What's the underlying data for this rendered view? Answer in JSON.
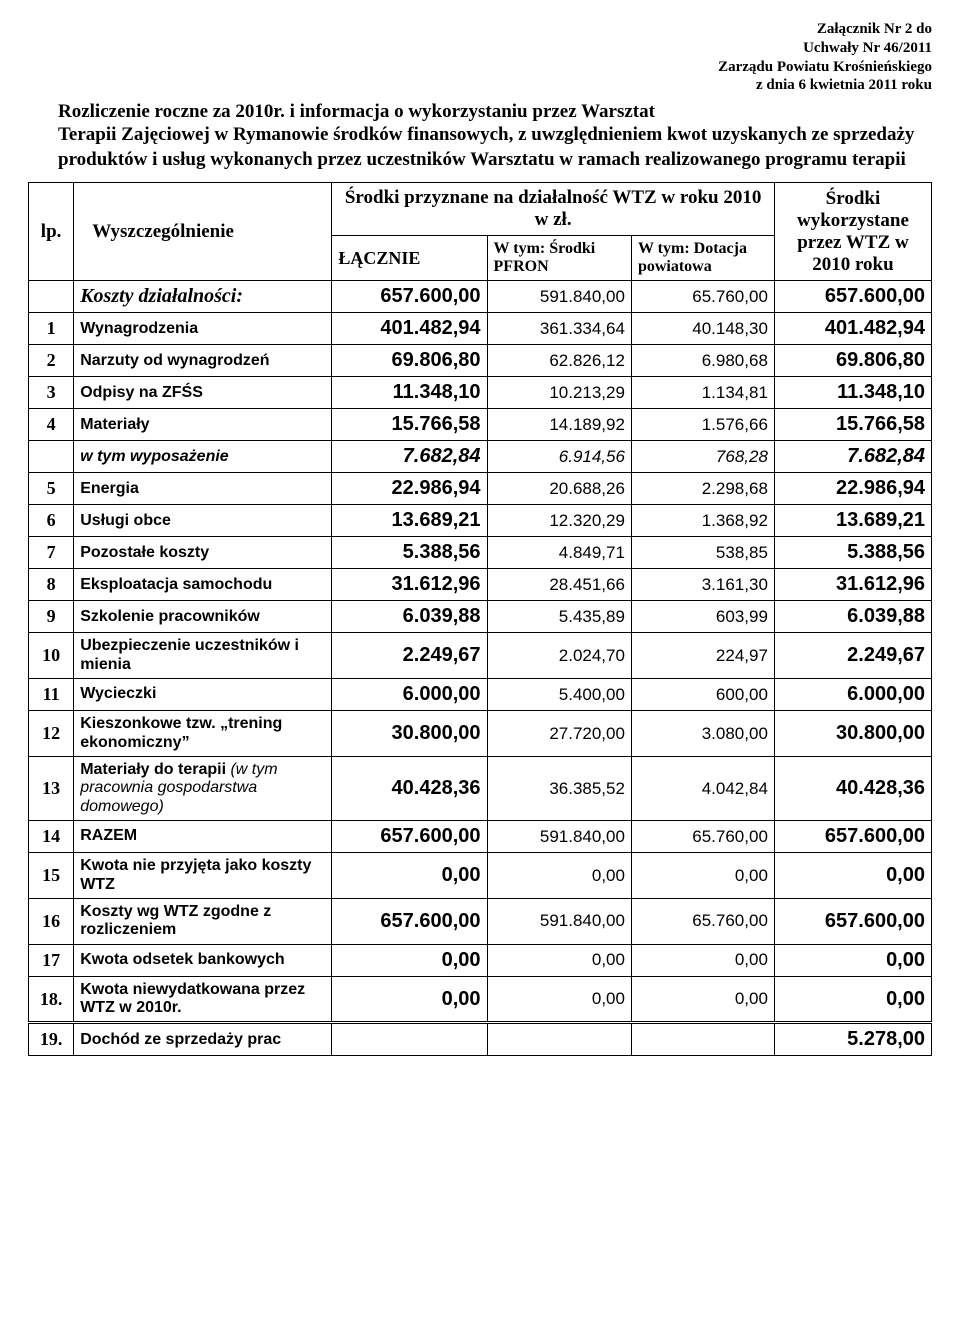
{
  "attachment": {
    "l1": "Załącznik Nr 2 do",
    "l2": "Uchwały Nr 46/2011",
    "l3": "Zarządu Powiatu Krośnieńskiego",
    "l4": "z dnia 6 kwietnia 2011 roku"
  },
  "title1": "Rozliczenie roczne za 2010r. i informacja o wykorzystaniu przez Warsztat",
  "title2": "Terapii Zajęciowej w Rymanowie środków finansowych, z uwzględnieniem kwot uzyskanych ze sprzedaży produktów i usług wykonanych przez uczestników Warsztatu w ramach realizowanego programu terapii",
  "headers": {
    "lp": "lp.",
    "spec": "Wyszczególnienie",
    "fund_top": "Środki przyznane na działalność WTZ w roku 2010 w zł.",
    "lacznie": "ŁĄCZNIE",
    "pfron": "W tym: Środki PFRON",
    "dotacja": "W tym: Dotacja powiatowa",
    "wyk": "Środki wykorzystane przez WTZ w 2010 roku"
  },
  "section_label": "Koszty działalności:",
  "section_vals": [
    "657.600,00",
    "591.840,00",
    "65.760,00",
    "657.600,00"
  ],
  "rows": [
    {
      "lp": "1",
      "name": "Wynagrodzenia",
      "v": [
        "401.482,94",
        "361.334,64",
        "40.148,30",
        "401.482,94"
      ]
    },
    {
      "lp": "2",
      "name": "Narzuty od wynagrodzeń",
      "v": [
        "69.806,80",
        "62.826,12",
        "6.980,68",
        "69.806,80"
      ]
    },
    {
      "lp": "3",
      "name": "Odpisy na ZFŚS",
      "v": [
        "11.348,10",
        "10.213,29",
        "1.134,81",
        "11.348,10"
      ]
    },
    {
      "lp": "4",
      "name": "Materiały",
      "v": [
        "15.766,58",
        "14.189,92",
        "1.576,66",
        "15.766,58"
      ]
    },
    {
      "lp": "",
      "name": "w tym wyposażenie",
      "italic": true,
      "v": [
        "7.682,84",
        "6.914,56",
        "768,28",
        "7.682,84"
      ]
    },
    {
      "lp": "5",
      "name": "Energia",
      "v": [
        "22.986,94",
        "20.688,26",
        "2.298,68",
        "22.986,94"
      ]
    },
    {
      "lp": "6",
      "name": "Usługi obce",
      "v": [
        "13.689,21",
        "12.320,29",
        "1.368,92",
        "13.689,21"
      ]
    },
    {
      "lp": "7",
      "name": "Pozostałe koszty",
      "v": [
        "5.388,56",
        "4.849,71",
        "538,85",
        "5.388,56"
      ]
    },
    {
      "lp": "8",
      "name": "Eksploatacja samochodu",
      "v": [
        "31.612,96",
        "28.451,66",
        "3.161,30",
        "31.612,96"
      ]
    },
    {
      "lp": "9",
      "name": "Szkolenie pracowników",
      "v": [
        "6.039,88",
        "5.435,89",
        "603,99",
        "6.039,88"
      ]
    },
    {
      "lp": "10",
      "name": "Ubezpieczenie uczestników i mienia",
      "v": [
        "2.249,67",
        "2.024,70",
        "224,97",
        "2.249,67"
      ]
    },
    {
      "lp": "11",
      "name": "Wycieczki",
      "v": [
        "6.000,00",
        "5.400,00",
        "600,00",
        "6.000,00"
      ]
    },
    {
      "lp": "12",
      "name": "Kieszonkowe tzw. „trening ekonomiczny”",
      "v": [
        "30.800,00",
        "27.720,00",
        "3.080,00",
        "30.800,00"
      ]
    },
    {
      "lp": "13",
      "name": "Materiały do terapii <span class='sub'>(w tym pracownia gospodarstwa domowego)</span>",
      "v": [
        "40.428,36",
        "36.385,52",
        "4.042,84",
        "40.428,36"
      ]
    },
    {
      "lp": "14",
      "name": "RAZEM",
      "v": [
        "657.600,00",
        "591.840,00",
        "65.760,00",
        "657.600,00"
      ]
    },
    {
      "lp": "15",
      "name": "Kwota nie przyjęta jako koszty WTZ",
      "v": [
        "0,00",
        "0,00",
        "0,00",
        "0,00"
      ]
    },
    {
      "lp": "16",
      "name": "Koszty wg WTZ zgodne z rozliczeniem",
      "v": [
        "657.600,00",
        "591.840,00",
        "65.760,00",
        "657.600,00"
      ]
    },
    {
      "lp": "17",
      "name": "Kwota odsetek bankowych",
      "v": [
        "0,00",
        "0,00",
        "0,00",
        "0,00"
      ]
    },
    {
      "lp": "18.",
      "name": "Kwota niewydatkowana przez WTZ w 2010r.",
      "v": [
        "0,00",
        "0,00",
        "0,00",
        "0,00"
      ]
    },
    {
      "lp": "19.",
      "name": "Dochód ze sprzedaży prac",
      "dbl": true,
      "v": [
        "",
        "",
        "",
        "5.278,00"
      ]
    }
  ]
}
